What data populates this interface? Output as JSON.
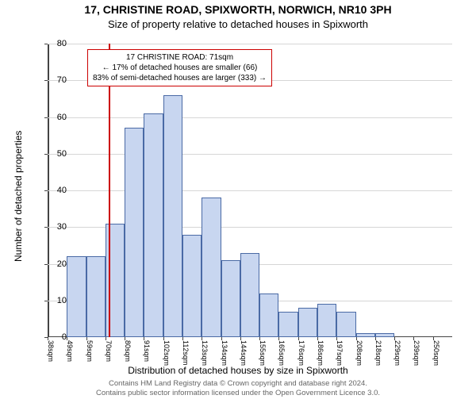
{
  "title": "17, CHRISTINE ROAD, SPIXWORTH, NORWICH, NR10 3PH",
  "subtitle": "Size of property relative to detached houses in Spixworth",
  "chart": {
    "type": "histogram",
    "ylabel": "Number of detached properties",
    "xlabel": "Distribution of detached houses by size in Spixworth",
    "ylim": [
      0,
      80
    ],
    "ytick_step": 10,
    "background_color": "#ffffff",
    "grid_color": "#d6d6d6",
    "axis_color": "#444444",
    "categories": [
      "38sqm",
      "49sqm",
      "59sqm",
      "70sqm",
      "80sqm",
      "91sqm",
      "102sqm",
      "112sqm",
      "123sqm",
      "134sqm",
      "144sqm",
      "155sqm",
      "165sqm",
      "176sqm",
      "186sqm",
      "197sqm",
      "208sqm",
      "218sqm",
      "229sqm",
      "239sqm",
      "250sqm"
    ],
    "values": [
      0,
      22,
      22,
      31,
      57,
      61,
      66,
      28,
      38,
      21,
      23,
      12,
      7,
      8,
      9,
      7,
      1,
      1,
      0,
      0,
      0
    ],
    "bar_fill_color": "#c8d6f0",
    "bar_border_color": "#4a6aa5",
    "bar_width_ratio": 1.0,
    "label_fontsize": 12,
    "tick_fontsize": 10,
    "title_fontsize": 14
  },
  "marker": {
    "value_index": 3,
    "line_color": "#cc0000",
    "info_lines": [
      "17 CHRISTINE ROAD: 71sqm",
      "← 17% of detached houses are smaller (66)",
      "83% of semi-detached houses are larger (333) →"
    ],
    "info_border_color": "#cc0000",
    "info_text_color": "#000000"
  },
  "footer": {
    "line1": "Contains HM Land Registry data © Crown copyright and database right 2024.",
    "line2": "Contains public sector information licensed under the Open Government Licence 3.0."
  }
}
